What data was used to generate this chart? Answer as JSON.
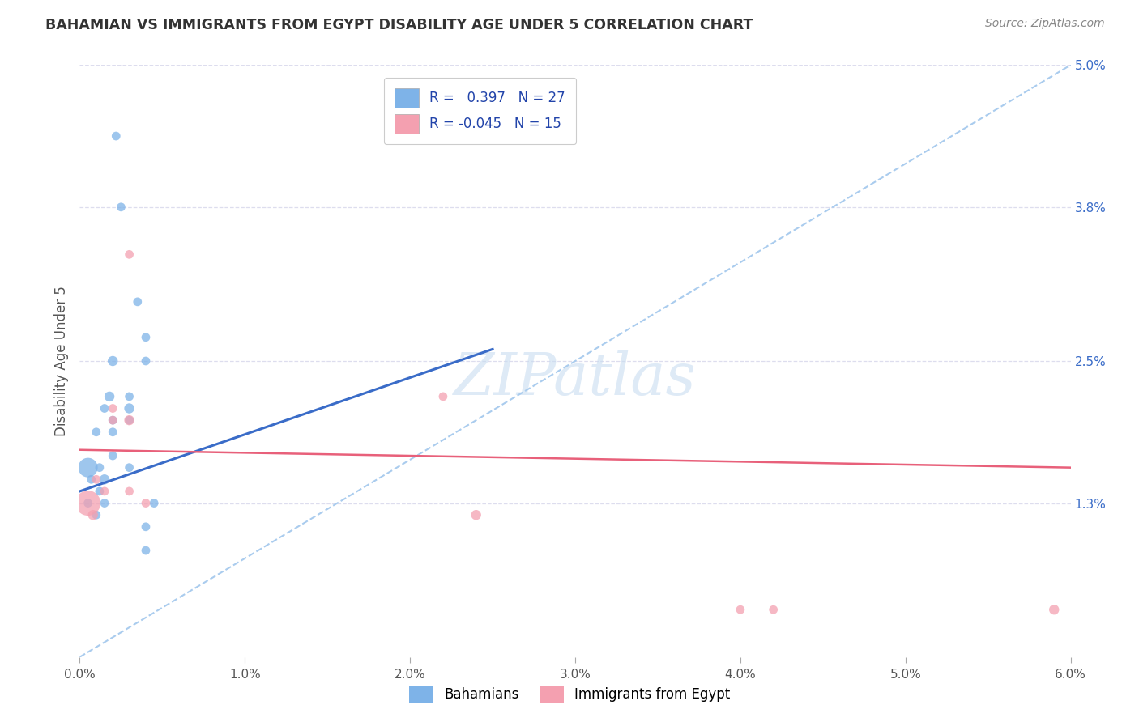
{
  "title": "BAHAMIAN VS IMMIGRANTS FROM EGYPT DISABILITY AGE UNDER 5 CORRELATION CHART",
  "source": "Source: ZipAtlas.com",
  "ylabel": "Disability Age Under 5",
  "xlim": [
    0.0,
    0.06
  ],
  "ylim": [
    0.0,
    0.05
  ],
  "xtick_labels": [
    "0.0%",
    "1.0%",
    "2.0%",
    "3.0%",
    "4.0%",
    "5.0%",
    "6.0%"
  ],
  "xtick_vals": [
    0.0,
    0.01,
    0.02,
    0.03,
    0.04,
    0.05,
    0.06
  ],
  "ytick_labels": [
    "1.3%",
    "2.5%",
    "3.8%",
    "5.0%"
  ],
  "ytick_vals": [
    0.013,
    0.025,
    0.038,
    0.05
  ],
  "r_blue": 0.397,
  "n_blue": 27,
  "r_pink": -0.045,
  "n_pink": 15,
  "blue_color": "#7EB3E8",
  "pink_color": "#F4A0B0",
  "blue_line_color": "#3A6CC8",
  "pink_line_color": "#E8607A",
  "dashed_line_color": "#AACCEE",
  "legend_blue_label": "R =   0.397   N = 27",
  "legend_pink_label": "R = -0.045   N = 15",
  "blue_scatter_x": [
    0.0005,
    0.0005,
    0.0007,
    0.001,
    0.001,
    0.0012,
    0.0012,
    0.0015,
    0.0015,
    0.0015,
    0.0018,
    0.002,
    0.002,
    0.002,
    0.002,
    0.003,
    0.003,
    0.003,
    0.003,
    0.0035,
    0.004,
    0.004,
    0.0045,
    0.004,
    0.004,
    0.0022,
    0.0025
  ],
  "blue_scatter_y": [
    0.016,
    0.013,
    0.015,
    0.019,
    0.012,
    0.014,
    0.016,
    0.015,
    0.013,
    0.021,
    0.022,
    0.02,
    0.019,
    0.017,
    0.025,
    0.02,
    0.021,
    0.016,
    0.022,
    0.03,
    0.025,
    0.027,
    0.013,
    0.011,
    0.009,
    0.044,
    0.038
  ],
  "pink_scatter_x": [
    0.0005,
    0.0008,
    0.001,
    0.0015,
    0.002,
    0.002,
    0.003,
    0.003,
    0.003,
    0.004,
    0.022,
    0.024,
    0.04,
    0.059,
    0.042
  ],
  "pink_scatter_y": [
    0.013,
    0.012,
    0.015,
    0.014,
    0.02,
    0.021,
    0.02,
    0.014,
    0.034,
    0.013,
    0.022,
    0.012,
    0.004,
    0.004,
    0.004
  ],
  "blue_dot_sizes": [
    300,
    60,
    60,
    60,
    60,
    60,
    60,
    80,
    60,
    60,
    80,
    60,
    60,
    60,
    80,
    60,
    80,
    60,
    60,
    60,
    60,
    60,
    60,
    60,
    60,
    60,
    60
  ],
  "pink_dot_sizes": [
    500,
    80,
    60,
    60,
    60,
    60,
    80,
    60,
    60,
    60,
    60,
    80,
    60,
    80,
    60
  ],
  "blue_line_x": [
    0.0,
    0.025
  ],
  "blue_line_y": [
    0.014,
    0.026
  ],
  "pink_line_x": [
    0.0,
    0.06
  ],
  "pink_line_y": [
    0.0175,
    0.016
  ],
  "dash_line_x": [
    0.0,
    0.06
  ],
  "dash_line_y": [
    0.0,
    0.05
  ],
  "watermark_text": "ZIPatlas",
  "background_color": "#FFFFFF",
  "grid_color": "#DDDDEE",
  "bottom_legend_labels": [
    "Bahamians",
    "Immigrants from Egypt"
  ]
}
